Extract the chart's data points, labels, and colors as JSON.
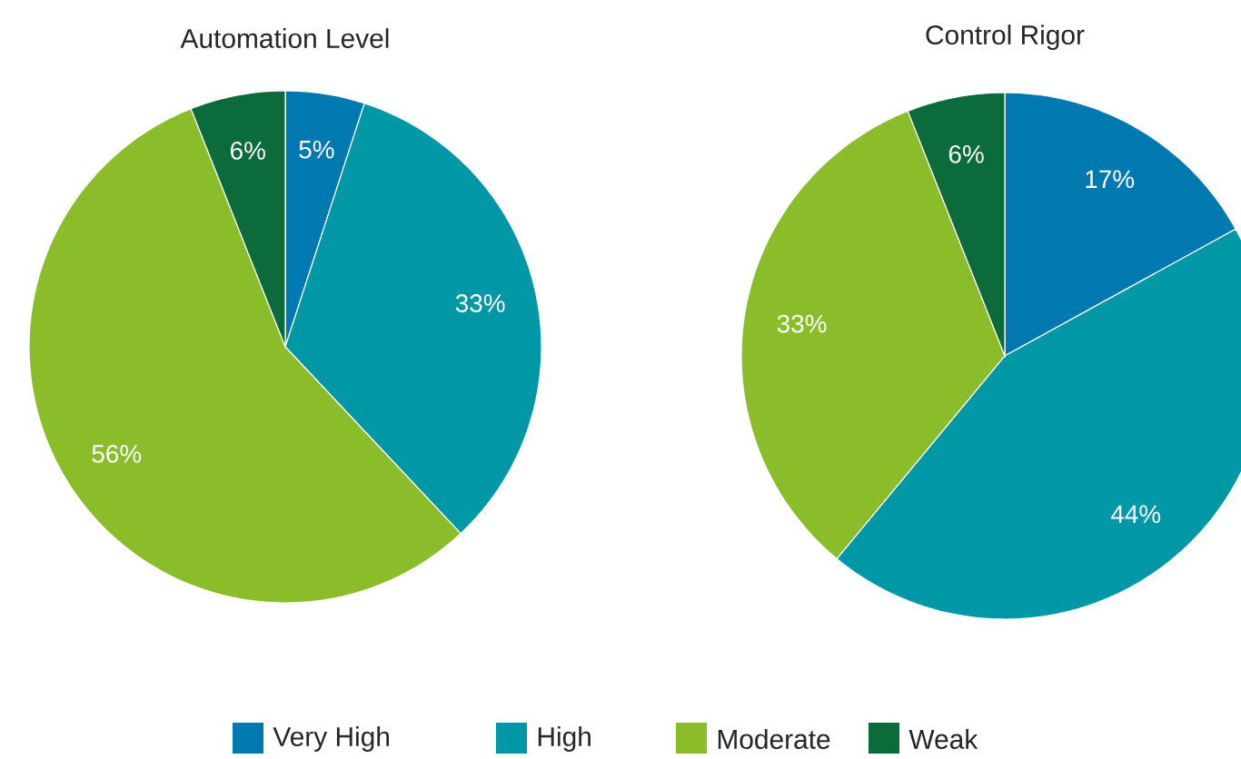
{
  "chart_data": [
    {
      "type": "pie",
      "title": "Automation Level",
      "categories": [
        "Very High",
        "High",
        "Moderate",
        "Weak"
      ],
      "values": [
        5,
        33,
        56,
        6
      ],
      "value_labels": [
        "5%",
        "33%",
        "56%",
        "6%"
      ],
      "colors": [
        "#0079b0",
        "#0097a7",
        "#8bbd2b",
        "#0b6b3a"
      ],
      "legend": "bottom"
    },
    {
      "type": "pie",
      "title": "Control Rigor",
      "categories": [
        null,
        null,
        null,
        null
      ],
      "values": [
        17,
        44,
        33,
        6
      ],
      "value_labels": [
        "17%",
        "44%",
        "33%",
        "6%"
      ],
      "colors": [
        "#0079b0",
        "#0097a7",
        "#8bbd2b",
        "#0b6b3a"
      ]
    }
  ]
}
